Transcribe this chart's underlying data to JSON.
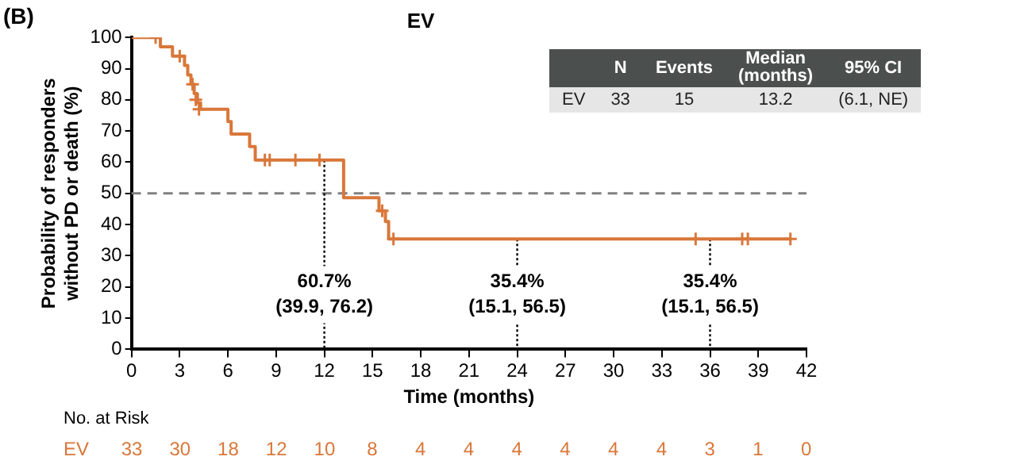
{
  "chart_data": [
    {
      "type": "step",
      "title": "EV",
      "xlabel": "Time (months)",
      "ylabel": "Probability of responders\nwithout PD or death (%)",
      "xlim": [
        0,
        42
      ],
      "xticks": [
        0,
        3,
        6,
        9,
        12,
        15,
        18,
        21,
        24,
        27,
        30,
        33,
        36,
        39,
        42
      ],
      "ylim": [
        0,
        100
      ],
      "yticks": [
        0,
        10,
        20,
        30,
        40,
        50,
        60,
        70,
        80,
        90,
        100
      ],
      "legend": false,
      "series": [
        {
          "color": "#d9773a",
          "x": [
            0,
            1.8,
            2.55,
            3.3,
            3.5,
            3.7,
            3.9,
            4.1,
            4.3,
            6.0,
            6.2,
            7.35,
            7.7,
            13.2,
            15.4,
            15.8,
            16.0,
            41
          ],
          "values": [
            100,
            97,
            94,
            91,
            88,
            85,
            82,
            79,
            77,
            73,
            69,
            65,
            60.7,
            48.6,
            44.4,
            41,
            35.4,
            35.4
          ]
        },
        {
          "type": "scatter",
          "color": "#d9773a",
          "marker": "cross",
          "x": [
            1.5,
            3.0,
            3.8,
            4.0,
            4.2,
            8.3,
            8.6,
            10.2,
            11.7,
            15.6,
            16.3,
            35.1,
            38.0,
            38.35,
            41
          ],
          "values": [
            100,
            94,
            85,
            80,
            77,
            60.7,
            60.7,
            60.7,
            60.7,
            44.4,
            35.4,
            35.4,
            35.4,
            35.4,
            35.4
          ]
        },
        {
          "type": "line",
          "color": "#000000",
          "line_style": "dotted",
          "x": [
            12,
            12
          ],
          "values": [
            60.7,
            0
          ]
        },
        {
          "type": "line",
          "color": "#000000",
          "line_style": "dotted",
          "x": [
            24,
            24
          ],
          "values": [
            35.4,
            0
          ]
        },
        {
          "type": "line",
          "color": "#000000",
          "line_style": "dotted",
          "x": [
            36,
            36
          ],
          "values": [
            35.4,
            0
          ]
        }
      ],
      "ref_lines": [
        {
          "axis": "y",
          "value": 50,
          "color": "#808080",
          "line_style": "dashed"
        }
      ],
      "annotations": [
        "(B)",
        {
          "text": "60.7%\n(39.9, 76.2)",
          "x": 12,
          "y": 17.5
        },
        {
          "text": "35.4%\n(15.1, 56.5)",
          "x": 24,
          "y": 17.5
        },
        {
          "text": "35.4%\n(15.1, 56.5)",
          "x": 36,
          "y": 17.5
        }
      ]
    },
    {
      "type": "other",
      "categories": [
        "N",
        "Events",
        "Median\n(months)",
        "95% CI"
      ],
      "series": [
        {
          "name": "EV",
          "values": [
            33,
            15,
            13.2,
            null
          ],
          "value_labels": [
            "33",
            "15",
            "13.2",
            "(6.1, NE)"
          ]
        }
      ]
    },
    {
      "type": "other",
      "title": "No. at Risk",
      "data_labels": true,
      "categories": [
        null,
        null,
        null,
        null,
        null,
        null,
        null,
        null,
        null,
        null,
        null,
        null,
        null,
        null,
        null
      ],
      "series": [
        {
          "name": "EV",
          "color": "#d9773a",
          "values": [
            33,
            30,
            18,
            12,
            10,
            8,
            4,
            4,
            4,
            4,
            4,
            4,
            3,
            1,
            0
          ]
        }
      ]
    }
  ]
}
